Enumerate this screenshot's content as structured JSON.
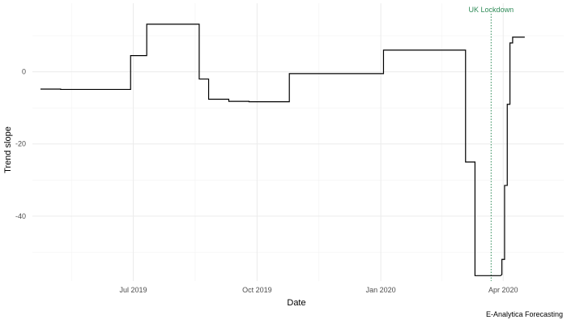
{
  "chart_data": {
    "type": "line",
    "xlabel": "Date",
    "ylabel": "Trend slope",
    "caption": "E-Analytica Forecasting",
    "x_ticks": [
      "2019-07-01",
      "2019-10-01",
      "2020-01-01",
      "2020-04-01"
    ],
    "x_tick_labels": [
      "Jul 2019",
      "Oct 2019",
      "Jan 2020",
      "Apr 2020"
    ],
    "y_ticks": [
      0,
      -20,
      -40
    ],
    "y_tick_labels": [
      "0",
      "-20",
      "-40"
    ],
    "xlim": [
      "2019-04-17",
      "2020-05-16"
    ],
    "ylim": [
      -58,
      19
    ],
    "grid": true,
    "annotations": [
      {
        "type": "vline",
        "x": "2020-03-23",
        "label": "UK Lockdown",
        "color": "#2e8b57",
        "style": "dotted"
      }
    ],
    "series": [
      {
        "color": "#000000",
        "points": [
          [
            "2019-04-23",
            -4.8
          ],
          [
            "2019-05-08",
            -4.8
          ],
          [
            "2019-05-08",
            -4.9
          ],
          [
            "2019-06-29",
            -4.9
          ],
          [
            "2019-06-29",
            4.5
          ],
          [
            "2019-07-11",
            4.5
          ],
          [
            "2019-07-11",
            13.2
          ],
          [
            "2019-08-19",
            13.2
          ],
          [
            "2019-08-19",
            -2.0
          ],
          [
            "2019-08-26",
            -2.0
          ],
          [
            "2019-08-26",
            -7.6
          ],
          [
            "2019-09-10",
            -7.6
          ],
          [
            "2019-09-10",
            -8.2
          ],
          [
            "2019-09-25",
            -8.2
          ],
          [
            "2019-09-25",
            -8.3
          ],
          [
            "2019-10-25",
            -8.3
          ],
          [
            "2019-10-25",
            -0.5
          ],
          [
            "2019-12-25",
            -0.5
          ],
          [
            "2020-01-03",
            -0.5
          ],
          [
            "2020-01-03",
            6.0
          ],
          [
            "2020-03-04",
            6.0
          ],
          [
            "2020-03-04",
            -25.0
          ],
          [
            "2020-03-11",
            -25.0
          ],
          [
            "2020-03-11",
            -56.5
          ],
          [
            "2020-03-30",
            -56.5
          ],
          [
            "2020-03-31",
            -56.2
          ],
          [
            "2020-03-31",
            -52.0
          ],
          [
            "2020-04-02",
            -52.0
          ],
          [
            "2020-04-02",
            -31.5
          ],
          [
            "2020-04-04",
            -31.5
          ],
          [
            "2020-04-04",
            -9.0
          ],
          [
            "2020-04-06",
            -9.0
          ],
          [
            "2020-04-06",
            8.0
          ],
          [
            "2020-04-08",
            8.0
          ],
          [
            "2020-04-08",
            9.6
          ],
          [
            "2020-04-17",
            9.6
          ]
        ]
      }
    ]
  }
}
